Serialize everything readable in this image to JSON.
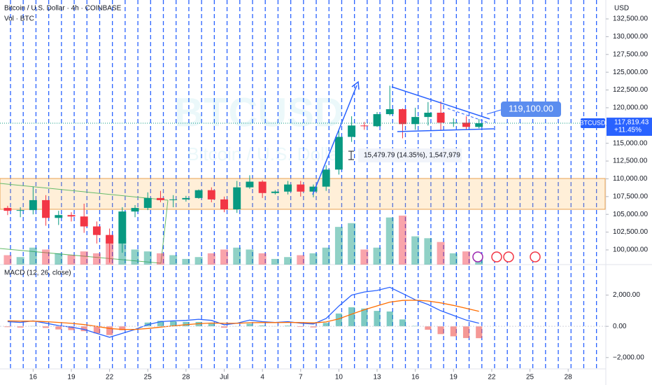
{
  "header": {
    "title": "Bitcoin / U.S. Dollar · 4h · COINBASE",
    "volume_label": "Vol · BTC",
    "currency": "USD"
  },
  "watermark": {
    "symbol": "BTCUSD",
    "name": "Bitcoin / U.S. Dollar"
  },
  "chart_data": [
    {
      "type": "candlestick",
      "x": [
        14,
        15,
        16,
        17,
        18,
        19,
        20,
        21,
        22,
        23,
        24,
        25,
        26,
        27,
        28,
        29,
        30,
        31,
        32,
        33,
        34,
        35,
        36,
        37,
        38,
        39,
        40,
        41,
        42,
        43,
        44,
        45,
        46,
        47,
        48,
        49,
        50,
        51
      ],
      "open": [
        105900,
        105500,
        105600,
        107000,
        104500,
        104900,
        104700,
        103300,
        102100,
        100900,
        105400,
        105900,
        107300,
        107000,
        107100,
        107300,
        108400,
        107100,
        105700,
        108800,
        109600,
        108000,
        108200,
        109200,
        108200,
        108900,
        111300,
        115900,
        117500,
        117400,
        119100,
        119800,
        117700,
        118700,
        119300,
        117900,
        117900,
        117300
      ],
      "high": [
        106200,
        106000,
        108900,
        107700,
        105500,
        105300,
        106500,
        104000,
        103000,
        106000,
        106300,
        108100,
        108300,
        107700,
        107600,
        108500,
        108800,
        107500,
        109700,
        110500,
        109800,
        108400,
        109700,
        109700,
        109200,
        111900,
        116800,
        118800,
        118000,
        119400,
        123100,
        119900,
        120000,
        120800,
        120900,
        118500,
        118800,
        118400
      ],
      "low": [
        104900,
        104600,
        105000,
        103400,
        103500,
        104000,
        102400,
        100900,
        98200,
        99600,
        104600,
        105600,
        106700,
        106000,
        106800,
        107200,
        106700,
        105300,
        105200,
        108600,
        107300,
        107800,
        107800,
        107500,
        107400,
        108300,
        110600,
        115200,
        116900,
        117300,
        118900,
        115700,
        116900,
        117500,
        116800,
        117300,
        116900,
        117100
      ],
      "close": [
        105500,
        105600,
        107000,
        104500,
        104900,
        104700,
        103300,
        102100,
        100900,
        105400,
        105900,
        107300,
        107000,
        107100,
        107300,
        108400,
        107100,
        105700,
        108800,
        109600,
        108000,
        108200,
        109200,
        108200,
        108900,
        111300,
        115900,
        117500,
        117400,
        119100,
        119800,
        117700,
        118700,
        119300,
        117900,
        117900,
        117300,
        117819.43
      ],
      "volume": [
        5000,
        4000,
        9000,
        8000,
        6000,
        5000,
        7000,
        6000,
        15000,
        14000,
        8000,
        7000,
        6000,
        5000,
        3000,
        4000,
        6000,
        8000,
        9000,
        8000,
        6000,
        3000,
        4000,
        5000,
        6000,
        9000,
        20000,
        22000,
        8000,
        9000,
        25000,
        26000,
        15000,
        14000,
        12000,
        6000,
        7000,
        5000
      ],
      "up_color": "#089981",
      "down_color": "#f23645",
      "xlim": [
        13.4,
        60.9
      ],
      "xticks": [
        16,
        19,
        22,
        25,
        28,
        {
          "value": 31,
          "label": "Jul"
        },
        {
          "value": 34,
          "label": "4"
        },
        {
          "value": 37,
          "label": "7"
        },
        {
          "value": 40,
          "label": "10"
        },
        {
          "value": 43,
          "label": "13"
        },
        {
          "value": 46,
          "label": "16"
        },
        {
          "value": 49,
          "label": "19"
        },
        {
          "value": 52,
          "label": "22"
        },
        {
          "value": 55,
          "label": "25"
        },
        {
          "value": 58,
          "label": "28"
        }
      ],
      "ylim": [
        97930,
        135160
      ],
      "yticks": [
        {
          "value": 100000,
          "label": "100,000.00"
        },
        {
          "value": 102500,
          "label": "102,500.00"
        },
        {
          "value": 105000,
          "label": "105,000.00"
        },
        {
          "value": 107500,
          "label": "107,500.00"
        },
        {
          "value": 110000,
          "label": "110,000.00"
        },
        {
          "value": 112500,
          "label": "112,500.00"
        },
        {
          "value": 115000,
          "label": "115,000.00"
        },
        {
          "value": 117500,
          "label": "117,500.00"
        },
        {
          "value": 120000,
          "label": "120,000.00"
        },
        {
          "value": 122500,
          "label": "122,500.00"
        },
        {
          "value": 125000,
          "label": "125,000.00"
        },
        {
          "value": 127500,
          "label": "127,500.00"
        },
        {
          "value": 130000,
          "label": "130,000.00"
        },
        {
          "value": 132500,
          "label": "132,500.00"
        }
      ],
      "symbol_tag": "BTCUSD",
      "last_price": {
        "value": 117819.43,
        "label": "117,819.43"
      },
      "change_label": "+11.45%",
      "alert": {
        "value": 119100,
        "label": "119,100.00"
      },
      "measure_label": "15,479.79 (14.35%), 1,547,979"
    },
    {
      "type": "macd",
      "title": "MACD (12, 26, close)",
      "x": [
        14,
        15,
        16,
        17,
        18,
        19,
        20,
        21,
        22,
        23,
        24,
        25,
        26,
        27,
        28,
        29,
        30,
        31,
        32,
        33,
        34,
        35,
        36,
        37,
        38,
        39,
        40,
        41,
        42,
        43,
        44,
        45,
        46,
        47,
        48,
        49,
        50,
        51
      ],
      "series": [
        {
          "color": "#2962ff",
          "values": [
            300,
            250,
            350,
            200,
            50,
            -50,
            -200,
            -450,
            -700,
            -450,
            -200,
            100,
            300,
            350,
            380,
            450,
            380,
            100,
            200,
            400,
            300,
            250,
            300,
            200,
            150,
            500,
            1300,
            2000,
            2200,
            2300,
            2500,
            2100,
            1700,
            1400,
            1000,
            700,
            400,
            200
          ]
        },
        {
          "color": "#ff6d00",
          "values": [
            350,
            330,
            330,
            300,
            250,
            190,
            110,
            0,
            -140,
            -200,
            -200,
            -140,
            -50,
            30,
            100,
            170,
            210,
            190,
            190,
            230,
            240,
            240,
            250,
            240,
            220,
            280,
            480,
            780,
            1060,
            1310,
            1550,
            1660,
            1670,
            1620,
            1500,
            1340,
            1150,
            960
          ]
        }
      ],
      "histogram": [
        -50,
        -80,
        20,
        -100,
        -200,
        -240,
        -310,
        -450,
        -560,
        -250,
        0,
        240,
        350,
        320,
        280,
        280,
        170,
        -90,
        10,
        170,
        60,
        10,
        50,
        -40,
        -70,
        220,
        820,
        1220,
        1140,
        990,
        950,
        440,
        30,
        -220,
        -500,
        -640,
        -750,
        -760
      ],
      "histogram_up_color": "#26a69a",
      "histogram_down_color": "#ef5350",
      "ylim": [
        -2727,
        3864
      ],
      "yticks": [
        {
          "value": 2000,
          "label": "2,000.00"
        },
        {
          "value": 0,
          "label": "0.00"
        },
        {
          "value": -2000,
          "label": "−2,000.00"
        }
      ]
    }
  ]
}
